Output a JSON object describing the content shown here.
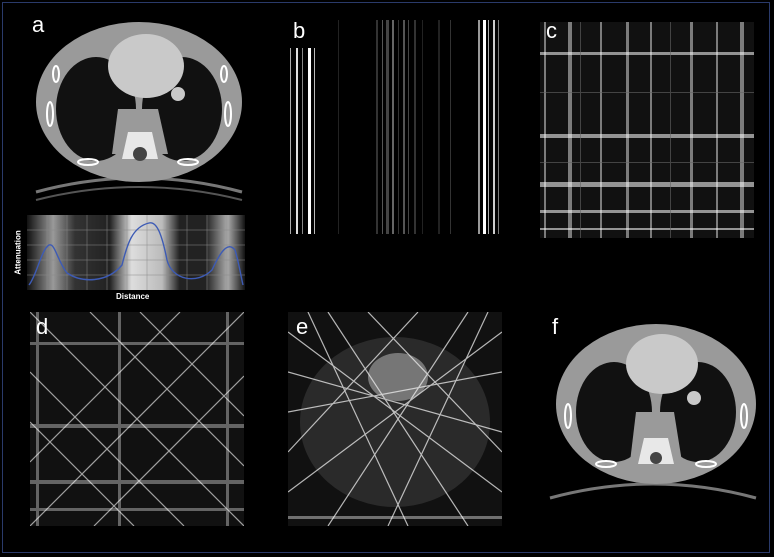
{
  "labels": {
    "a": "a",
    "b": "b",
    "c": "c",
    "d": "d",
    "e": "e",
    "f": "f"
  },
  "profile": {
    "ylabel": "Attenuation",
    "xlabel": "Distance",
    "line_color": "#3d5bb5"
  },
  "colors": {
    "background": "#000000",
    "tissue": "#9a9a9a",
    "heart": "#c9c9c9",
    "bone": "#f0f0f0"
  }
}
